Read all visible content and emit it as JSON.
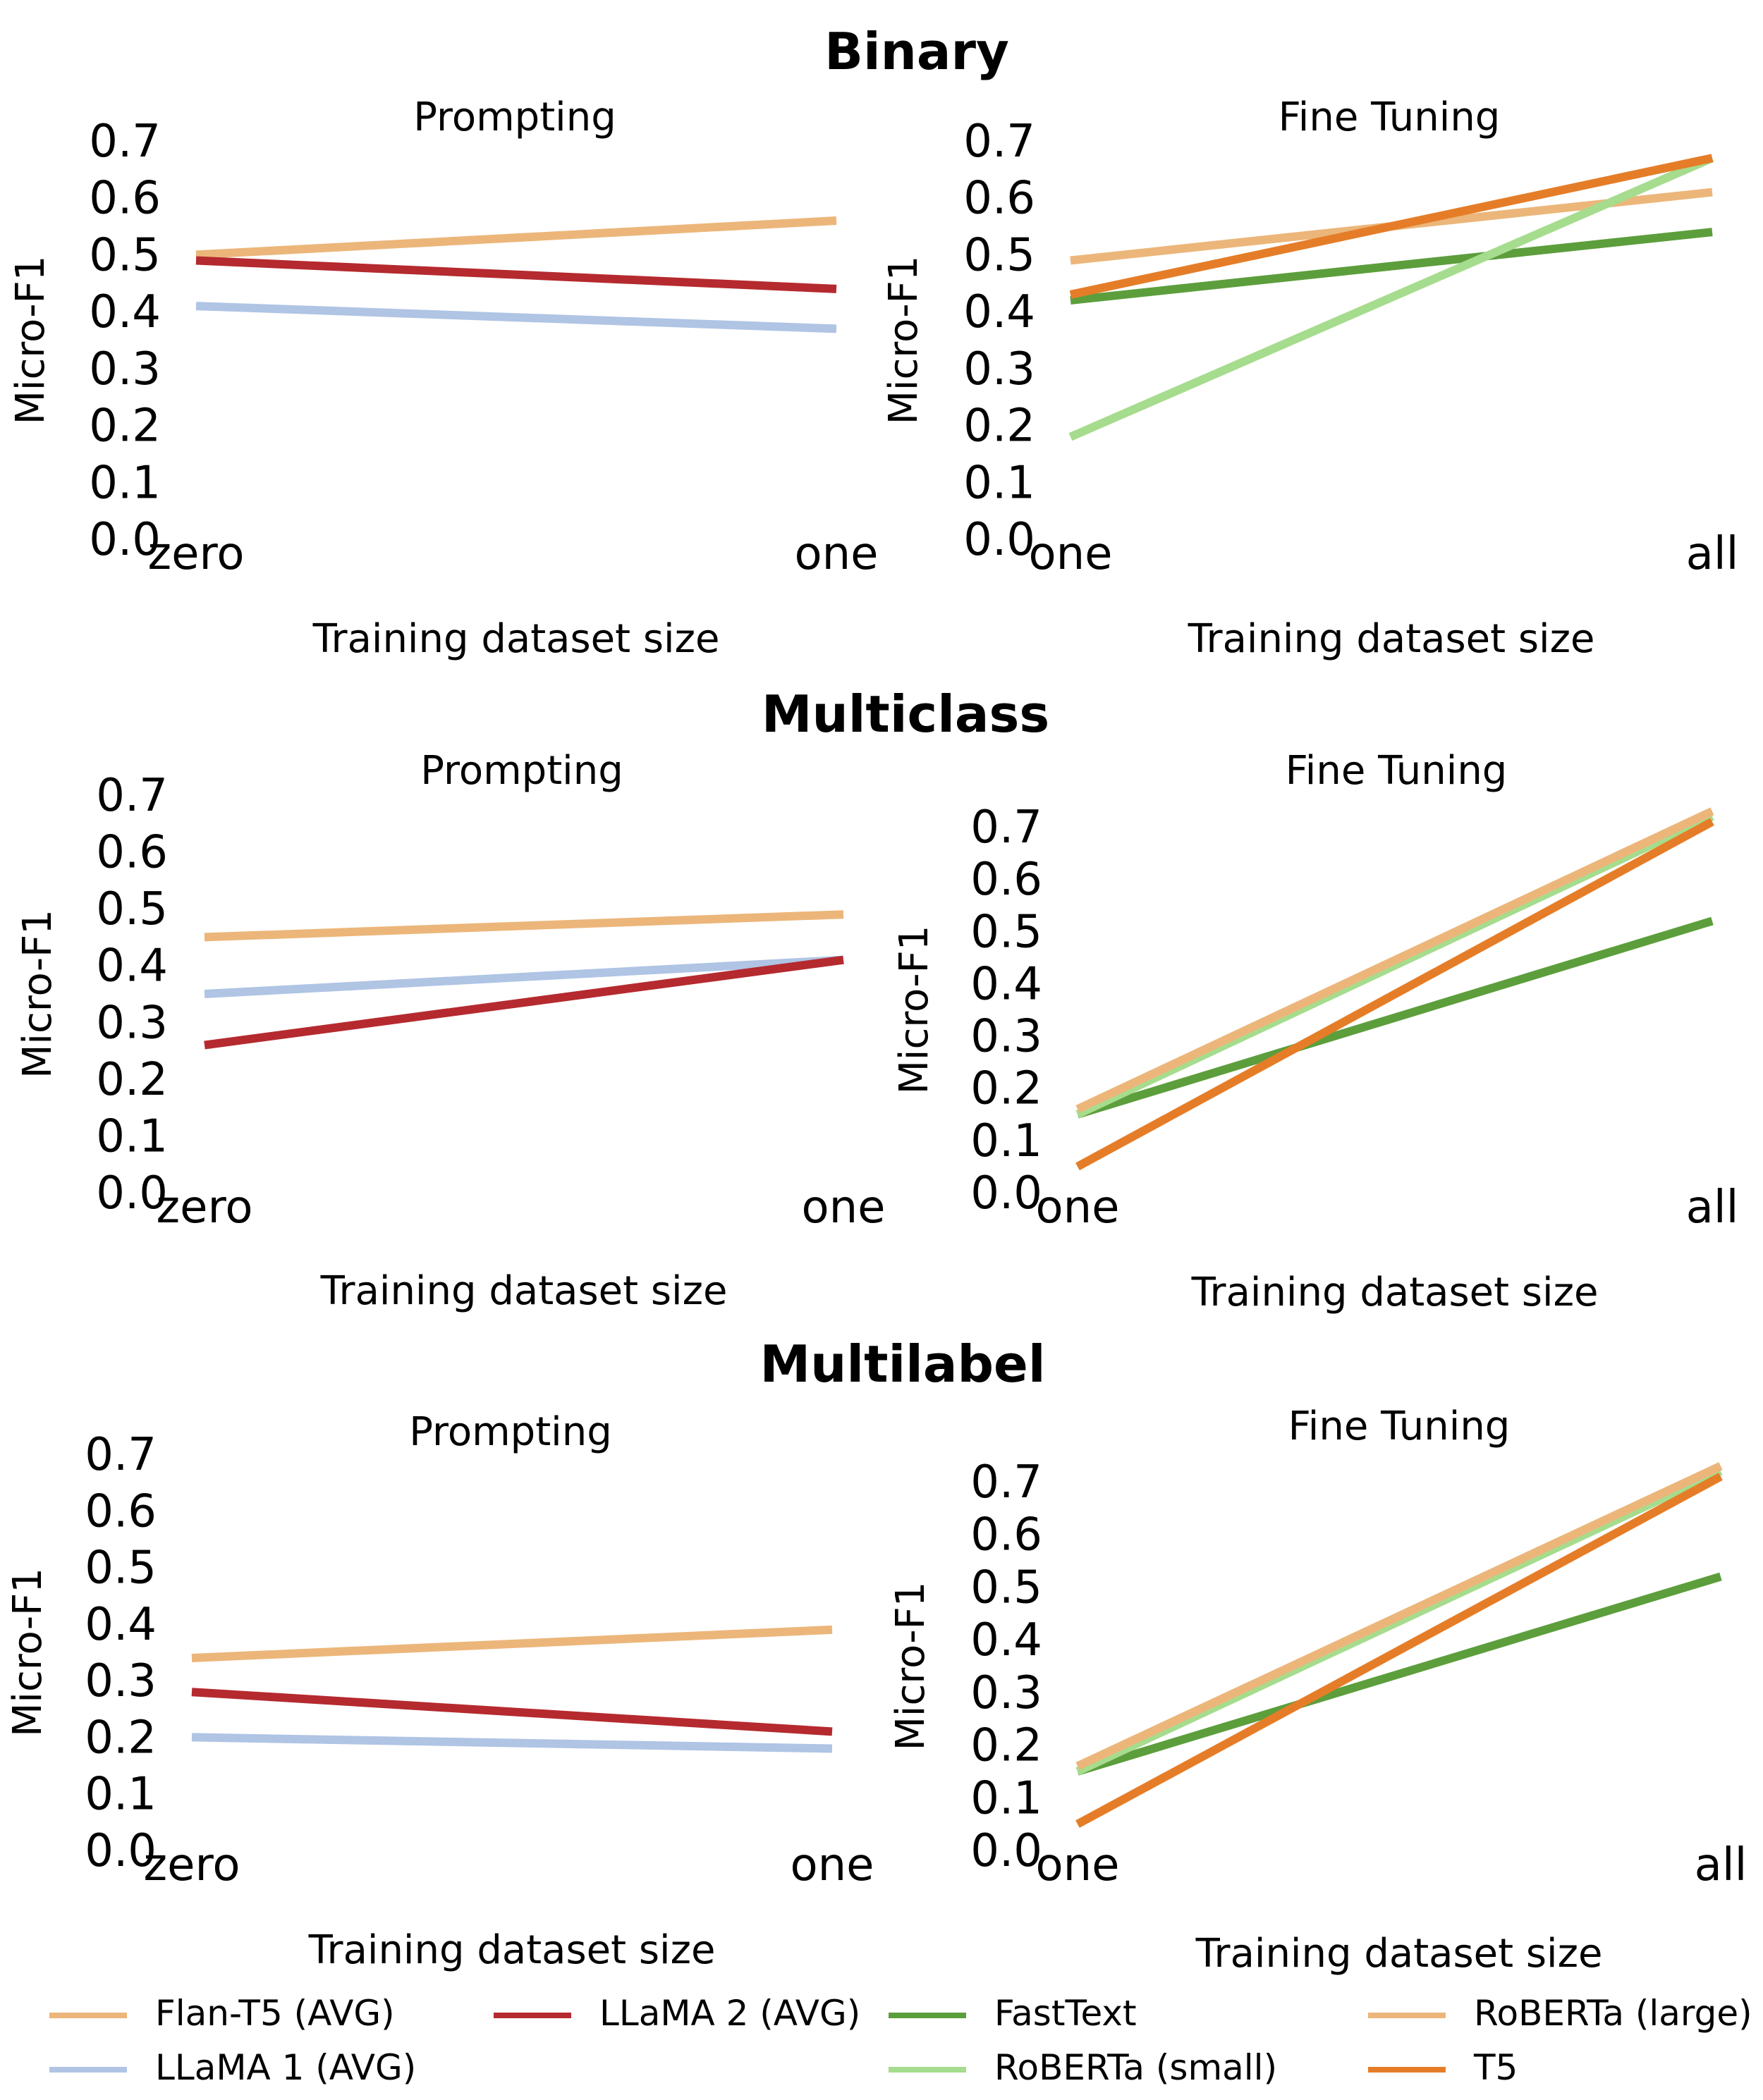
{
  "colors": {
    "flan": "#ecb67a",
    "llama1": "#b0c4e4",
    "llama2": "#b52a2f",
    "fasttext": "#5c9e3c",
    "roberta_small": "#a6dc8d",
    "roberta_large": "#ecb67a",
    "t5": "#e57d28"
  },
  "legend": [
    {
      "key": "flan",
      "label": "Flan-T5 (AVG)"
    },
    {
      "key": "llama2",
      "label": "LLaMA 2 (AVG)"
    },
    {
      "key": "fasttext",
      "label": "FastText"
    },
    {
      "key": "roberta_large",
      "label": "RoBERTa (large)"
    },
    {
      "key": "llama1",
      "label": "LLaMA 1 (AVG)"
    },
    {
      "key": "roberta_small",
      "label": "RoBERTa (small)"
    },
    {
      "key": "t5",
      "label": "T5"
    }
  ],
  "chart_data": [
    {
      "group": "Binary",
      "title": "Prompting",
      "type": "line",
      "xlabel": "Training dataset size",
      "ylabel": "Micro-F1",
      "categories": [
        "zero",
        "one"
      ],
      "ylim": [
        0,
        0.7
      ],
      "yticks": [
        "0.0",
        "0.1",
        "0.2",
        "0.3",
        "0.4",
        "0.5",
        "0.6",
        "0.7"
      ],
      "series": [
        {
          "name": "Flan-T5 (AVG)",
          "key": "flan",
          "values": [
            0.5,
            0.56
          ]
        },
        {
          "name": "LLaMA 2 (AVG)",
          "key": "llama2",
          "values": [
            0.49,
            0.44
          ]
        },
        {
          "name": "LLaMA 1 (AVG)",
          "key": "llama1",
          "values": [
            0.41,
            0.37
          ]
        }
      ]
    },
    {
      "group": "Binary",
      "title": "Fine Tuning",
      "type": "line",
      "xlabel": "Training dataset size",
      "ylabel": "Micro-F1",
      "categories": [
        "one",
        "all"
      ],
      "ylim": [
        0,
        0.7
      ],
      "yticks": [
        "0.0",
        "0.1",
        "0.2",
        "0.3",
        "0.4",
        "0.5",
        "0.6",
        "0.7"
      ],
      "series": [
        {
          "name": "RoBERTa (large)",
          "key": "roberta_large",
          "values": [
            0.49,
            0.61
          ]
        },
        {
          "name": "FastText",
          "key": "fasttext",
          "values": [
            0.42,
            0.54
          ]
        },
        {
          "name": "RoBERTa (small)",
          "key": "roberta_small",
          "values": [
            0.18,
            0.67
          ]
        },
        {
          "name": "T5",
          "key": "t5",
          "values": [
            0.43,
            0.67
          ]
        }
      ]
    },
    {
      "group": "Multiclass",
      "title": "Prompting",
      "type": "line",
      "xlabel": "Training dataset size",
      "ylabel": "Micro-F1",
      "categories": [
        "zero",
        "one"
      ],
      "ylim": [
        0,
        0.7
      ],
      "yticks": [
        "0.0",
        "0.1",
        "0.2",
        "0.3",
        "0.4",
        "0.5",
        "0.6",
        "0.7"
      ],
      "series": [
        {
          "name": "Flan-T5 (AVG)",
          "key": "flan",
          "values": [
            0.45,
            0.49
          ]
        },
        {
          "name": "LLaMA 1 (AVG)",
          "key": "llama1",
          "values": [
            0.35,
            0.41
          ]
        },
        {
          "name": "LLaMA 2 (AVG)",
          "key": "llama2",
          "values": [
            0.26,
            0.41
          ]
        }
      ]
    },
    {
      "group": "Multiclass",
      "title": "Fine Tuning",
      "type": "line",
      "xlabel": "Training dataset size",
      "ylabel": "Micro-F1",
      "categories": [
        "one",
        "all"
      ],
      "ylim": [
        0,
        0.7
      ],
      "yticks": [
        "0.0",
        "0.1",
        "0.2",
        "0.3",
        "0.4",
        "0.5",
        "0.6",
        "0.7"
      ],
      "series": [
        {
          "name": "FastText",
          "key": "fasttext",
          "values": [
            0.15,
            0.52
          ]
        },
        {
          "name": "RoBERTa (small)",
          "key": "roberta_small",
          "values": [
            0.15,
            0.72
          ]
        },
        {
          "name": "RoBERTa (large)",
          "key": "roberta_large",
          "values": [
            0.16,
            0.73
          ]
        },
        {
          "name": "T5",
          "key": "t5",
          "values": [
            0.05,
            0.71
          ]
        }
      ]
    },
    {
      "group": "Multilabel",
      "title": "Prompting",
      "type": "line",
      "xlabel": "Training dataset size",
      "ylabel": "Micro-F1",
      "categories": [
        "zero",
        "one"
      ],
      "ylim": [
        0,
        0.7
      ],
      "yticks": [
        "0.0",
        "0.1",
        "0.2",
        "0.3",
        "0.4",
        "0.5",
        "0.6",
        "0.7"
      ],
      "series": [
        {
          "name": "Flan-T5 (AVG)",
          "key": "flan",
          "values": [
            0.34,
            0.39
          ]
        },
        {
          "name": "LLaMA 2 (AVG)",
          "key": "llama2",
          "values": [
            0.28,
            0.21
          ]
        },
        {
          "name": "LLaMA 1 (AVG)",
          "key": "llama1",
          "values": [
            0.2,
            0.18
          ]
        }
      ]
    },
    {
      "group": "Multilabel",
      "title": "Fine Tuning",
      "type": "line",
      "xlabel": "Training dataset size",
      "ylabel": "Micro-F1",
      "categories": [
        "one",
        "all"
      ],
      "ylim": [
        0,
        0.7
      ],
      "yticks": [
        "0.0",
        "0.1",
        "0.2",
        "0.3",
        "0.4",
        "0.5",
        "0.6",
        "0.7"
      ],
      "series": [
        {
          "name": "FastText",
          "key": "fasttext",
          "values": [
            0.15,
            0.52
          ]
        },
        {
          "name": "RoBERTa (small)",
          "key": "roberta_small",
          "values": [
            0.15,
            0.72
          ]
        },
        {
          "name": "RoBERTa (large)",
          "key": "roberta_large",
          "values": [
            0.16,
            0.73
          ]
        },
        {
          "name": "T5",
          "key": "t5",
          "values": [
            0.05,
            0.71
          ]
        }
      ]
    }
  ]
}
